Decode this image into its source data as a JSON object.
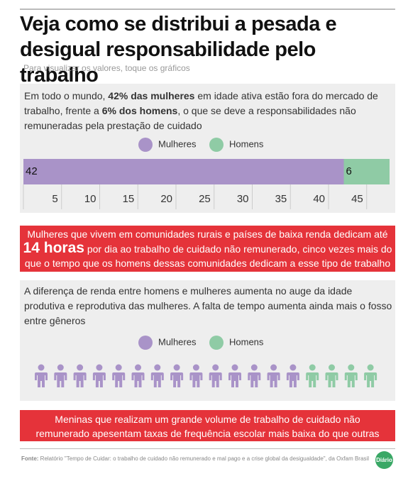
{
  "header": {
    "title": "Veja como se distribui a pesada e desigual responsabilidade pelo trabalho",
    "subtitle": "Para visualizar os valores, toque os gráficos"
  },
  "chart_data": [
    {
      "type": "stacked-bar",
      "title": [
        "Em todo o mundo, ",
        "42% das mulheres",
        " em idade ativa estão fora do mercado de trabalho, frente a ",
        "6% dos homens",
        ", o que se deve a responsabilidades não remuneradas pela prestação de cuidado"
      ],
      "series": [
        {
          "name": "Mulheres",
          "color": "#a993c8",
          "values": [
            42
          ]
        },
        {
          "name": "Homens",
          "color": "#8fcba5",
          "values": [
            6
          ]
        }
      ],
      "xlim": [
        0,
        48
      ],
      "xticks": [
        5,
        10,
        15,
        20,
        25,
        30,
        35,
        40,
        45
      ]
    },
    {
      "type": "pictogram",
      "title": "A diferença de renda entre homens e mulheres aumenta no auge da idade produtiva e reprodutiva das mulheres. A falta de tempo aumenta ainda mais o fosso entre gêneros",
      "series": [
        {
          "name": "Mulheres",
          "color": "#a993c8",
          "values": [
            14
          ]
        },
        {
          "name": "Homens",
          "color": "#8fcba5",
          "values": [
            4
          ]
        }
      ]
    }
  ],
  "banners": [
    [
      "Mulheres que vivem em comunidades rurais e países de baixa renda dedicam até ",
      "14 horas",
      " por dia ao trabalho de cuidado não remunerado, cinco vezes mais do que o tempo que os homens dessas comunidades dedicam a esse tipo de trabalho"
    ],
    [
      "Meninas que realizam um grande volume de trabalho de cuidado não remunerado apesentam taxas de frequência escolar mais baixa do que outras meninas"
    ]
  ],
  "source": {
    "label": "Fonte:",
    "text": "Relatório \"Tempo de Cuidar: o trabalho de cuidado não remunerado e mal pago e a crise global da desigualdade\", da Oxfam Brasil",
    "logo": "Diário"
  }
}
